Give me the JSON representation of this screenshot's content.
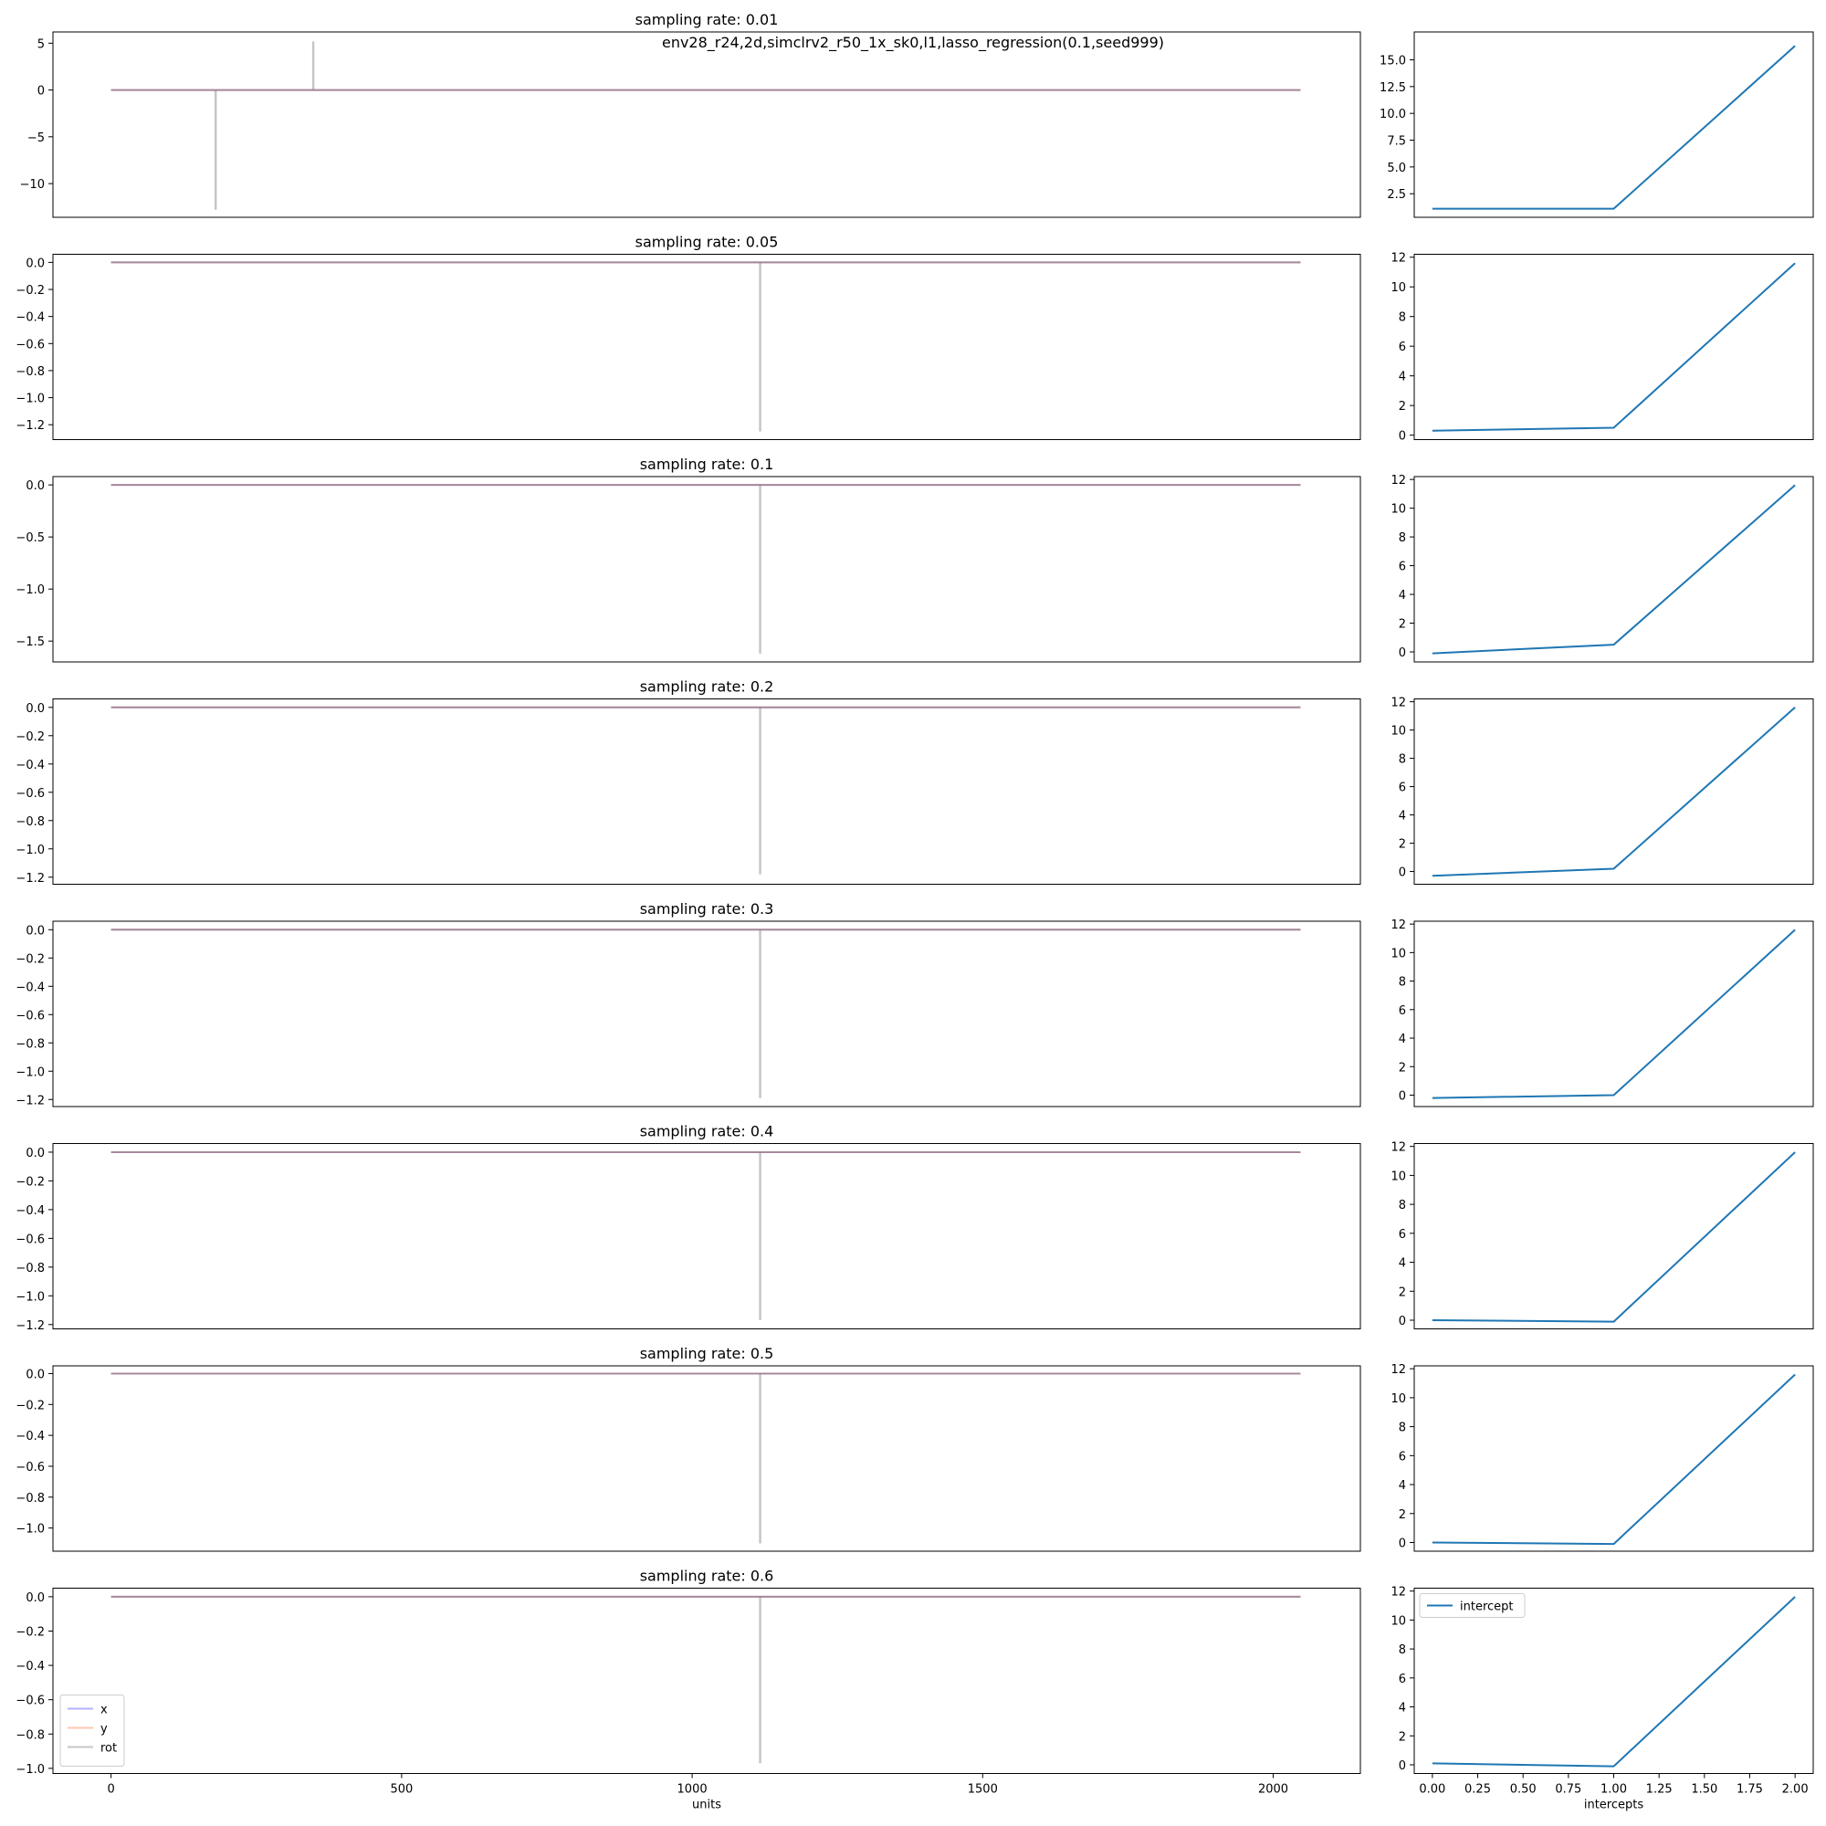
{
  "figure": {
    "suptitle": "env28_r24,2d,simclrv2_r50_1x_sk0,l1,lasso_regression(0.1,seed999)"
  },
  "colors": {
    "x": "#0000ff",
    "y": "#ff4500",
    "rot": "#808080",
    "intercept": "#1f77b4"
  },
  "chart_data": [
    {
      "type": "line",
      "panel": "coefficients",
      "title": "sampling rate: 0.01",
      "xlabel": "",
      "ylabel": "",
      "xlim": [
        -100,
        2150
      ],
      "ylim": [
        -13.6,
        6.2
      ],
      "xticks": [
        0,
        500,
        1000,
        1500,
        2000
      ],
      "show_xticks": false,
      "yticks": [
        5,
        0,
        -5,
        -10
      ],
      "ytick_labels": [
        "5",
        "0",
        "−5",
        "−10"
      ],
      "baseline_x": [
        0,
        2047
      ],
      "value": 0,
      "spikes": [
        {
          "x": 180,
          "y": -12.8
        },
        {
          "x": 348,
          "y": 5.2
        }
      ],
      "series": [
        {
          "name": "x"
        },
        {
          "name": "y"
        },
        {
          "name": "rot"
        }
      ]
    },
    {
      "type": "line",
      "panel": "coefficients",
      "title": "sampling rate: 0.05",
      "xlabel": "",
      "ylabel": "",
      "xlim": [
        -100,
        2150
      ],
      "ylim": [
        -1.31,
        0.06
      ],
      "xticks": [
        0,
        500,
        1000,
        1500,
        2000
      ],
      "show_xticks": false,
      "yticks": [
        0,
        -0.2,
        -0.4,
        -0.6,
        -0.8,
        -1.0,
        -1.2
      ],
      "ytick_labels": [
        "0.0",
        "−0.2",
        "−0.4",
        "−0.6",
        "−0.8",
        "−1.0",
        "−1.2"
      ],
      "baseline_x": [
        0,
        2047
      ],
      "value": 0,
      "spikes": [
        {
          "x": 1117,
          "y": -1.25
        }
      ],
      "series": [
        {
          "name": "x"
        },
        {
          "name": "y"
        },
        {
          "name": "rot"
        }
      ]
    },
    {
      "type": "line",
      "panel": "coefficients",
      "title": "sampling rate: 0.1",
      "xlabel": "",
      "ylabel": "",
      "xlim": [
        -100,
        2150
      ],
      "ylim": [
        -1.7,
        0.08
      ],
      "xticks": [
        0,
        500,
        1000,
        1500,
        2000
      ],
      "show_xticks": false,
      "yticks": [
        0,
        -0.5,
        -1.0,
        -1.5
      ],
      "ytick_labels": [
        "0.0",
        "−0.5",
        "−1.0",
        "−1.5"
      ],
      "baseline_x": [
        0,
        2047
      ],
      "value": 0,
      "spikes": [
        {
          "x": 1117,
          "y": -1.62
        }
      ],
      "series": [
        {
          "name": "x"
        },
        {
          "name": "y"
        },
        {
          "name": "rot"
        }
      ]
    },
    {
      "type": "line",
      "panel": "coefficients",
      "title": "sampling rate: 0.2",
      "xlabel": "",
      "ylabel": "",
      "xlim": [
        -100,
        2150
      ],
      "ylim": [
        -1.25,
        0.06
      ],
      "xticks": [
        0,
        500,
        1000,
        1500,
        2000
      ],
      "show_xticks": false,
      "yticks": [
        0,
        -0.2,
        -0.4,
        -0.6,
        -0.8,
        -1.0,
        -1.2
      ],
      "ytick_labels": [
        "0.0",
        "−0.2",
        "−0.4",
        "−0.6",
        "−0.8",
        "−1.0",
        "−1.2"
      ],
      "baseline_x": [
        0,
        2047
      ],
      "value": 0,
      "spikes": [
        {
          "x": 1117,
          "y": -1.18
        }
      ],
      "series": [
        {
          "name": "x"
        },
        {
          "name": "y"
        },
        {
          "name": "rot"
        }
      ]
    },
    {
      "type": "line",
      "panel": "coefficients",
      "title": "sampling rate: 0.3",
      "xlabel": "",
      "ylabel": "",
      "xlim": [
        -100,
        2150
      ],
      "ylim": [
        -1.25,
        0.06
      ],
      "xticks": [
        0,
        500,
        1000,
        1500,
        2000
      ],
      "show_xticks": false,
      "yticks": [
        0,
        -0.2,
        -0.4,
        -0.6,
        -0.8,
        -1.0,
        -1.2
      ],
      "ytick_labels": [
        "0.0",
        "−0.2",
        "−0.4",
        "−0.6",
        "−0.8",
        "−1.0",
        "−1.2"
      ],
      "baseline_x": [
        0,
        2047
      ],
      "value": 0,
      "spikes": [
        {
          "x": 1117,
          "y": -1.19
        }
      ],
      "series": [
        {
          "name": "x"
        },
        {
          "name": "y"
        },
        {
          "name": "rot"
        }
      ]
    },
    {
      "type": "line",
      "panel": "coefficients",
      "title": "sampling rate: 0.4",
      "xlabel": "",
      "ylabel": "",
      "xlim": [
        -100,
        2150
      ],
      "ylim": [
        -1.23,
        0.06
      ],
      "xticks": [
        0,
        500,
        1000,
        1500,
        2000
      ],
      "show_xticks": false,
      "yticks": [
        0,
        -0.2,
        -0.4,
        -0.6,
        -0.8,
        -1.0,
        -1.2
      ],
      "ytick_labels": [
        "0.0",
        "−0.2",
        "−0.4",
        "−0.6",
        "−0.8",
        "−1.0",
        "−1.2"
      ],
      "baseline_x": [
        0,
        2047
      ],
      "value": 0,
      "spikes": [
        {
          "x": 1117,
          "y": -1.17
        }
      ],
      "series": [
        {
          "name": "x"
        },
        {
          "name": "y"
        },
        {
          "name": "rot"
        }
      ]
    },
    {
      "type": "line",
      "panel": "coefficients",
      "title": "sampling rate: 0.5",
      "xlabel": "",
      "ylabel": "",
      "xlim": [
        -100,
        2150
      ],
      "ylim": [
        -1.15,
        0.05
      ],
      "xticks": [
        0,
        500,
        1000,
        1500,
        2000
      ],
      "show_xticks": false,
      "yticks": [
        0,
        -0.2,
        -0.4,
        -0.6,
        -0.8,
        -1.0
      ],
      "ytick_labels": [
        "0.0",
        "−0.2",
        "−0.4",
        "−0.6",
        "−0.8",
        "−1.0"
      ],
      "baseline_x": [
        0,
        2047
      ],
      "value": 0,
      "spikes": [
        {
          "x": 1117,
          "y": -1.1
        }
      ],
      "series": [
        {
          "name": "x"
        },
        {
          "name": "y"
        },
        {
          "name": "rot"
        }
      ]
    },
    {
      "type": "line",
      "panel": "coefficients",
      "title": "sampling rate: 0.6",
      "xlabel": "units",
      "ylabel": "",
      "xlim": [
        -100,
        2150
      ],
      "ylim": [
        -1.03,
        0.05
      ],
      "xticks": [
        0,
        500,
        1000,
        1500,
        2000
      ],
      "show_xticks": true,
      "yticks": [
        0,
        -0.2,
        -0.4,
        -0.6,
        -0.8,
        -1.0
      ],
      "ytick_labels": [
        "0.0",
        "−0.2",
        "−0.4",
        "−0.6",
        "−0.8",
        "−1.0"
      ],
      "baseline_x": [
        0,
        2047
      ],
      "value": 0,
      "spikes": [
        {
          "x": 1117,
          "y": -0.97
        }
      ],
      "series": [
        {
          "name": "x"
        },
        {
          "name": "y"
        },
        {
          "name": "rot"
        }
      ],
      "legend": {
        "placement": "lower-left",
        "entries": [
          "x",
          "y",
          "rot"
        ]
      }
    },
    {
      "type": "line",
      "panel": "intercepts",
      "title": "",
      "xlabel": "",
      "ylabel": "",
      "x": [
        0,
        1,
        2
      ],
      "xlim": [
        -0.1,
        2.1
      ],
      "ylim": [
        0.3,
        17.6
      ],
      "xticks": [
        0,
        0.25,
        0.5,
        0.75,
        1.0,
        1.25,
        1.5,
        1.75,
        2.0
      ],
      "show_xticks": false,
      "yticks": [
        2.5,
        5.0,
        7.5,
        10.0,
        12.5,
        15.0
      ],
      "ytick_labels": [
        "2.5",
        "5.0",
        "7.5",
        "10.0",
        "12.5",
        "15.0"
      ],
      "series": [
        {
          "name": "intercept",
          "values": [
            1.1,
            1.1,
            16.3
          ]
        }
      ]
    },
    {
      "type": "line",
      "panel": "intercepts",
      "title": "",
      "xlabel": "",
      "ylabel": "",
      "x": [
        0,
        1,
        2
      ],
      "xlim": [
        -0.1,
        2.1
      ],
      "ylim": [
        -0.3,
        12.2
      ],
      "xticks": [
        0,
        0.25,
        0.5,
        0.75,
        1.0,
        1.25,
        1.5,
        1.75,
        2.0
      ],
      "show_xticks": false,
      "yticks": [
        0,
        2,
        4,
        6,
        8,
        10,
        12
      ],
      "ytick_labels": [
        "0",
        "2",
        "4",
        "6",
        "8",
        "10",
        "12"
      ],
      "series": [
        {
          "name": "intercept",
          "values": [
            0.3,
            0.5,
            11.6
          ]
        }
      ]
    },
    {
      "type": "line",
      "panel": "intercepts",
      "title": "",
      "xlabel": "",
      "ylabel": "",
      "x": [
        0,
        1,
        2
      ],
      "xlim": [
        -0.1,
        2.1
      ],
      "ylim": [
        -0.7,
        12.2
      ],
      "xticks": [
        0,
        0.25,
        0.5,
        0.75,
        1.0,
        1.25,
        1.5,
        1.75,
        2.0
      ],
      "show_xticks": false,
      "yticks": [
        0,
        2,
        4,
        6,
        8,
        10,
        12
      ],
      "ytick_labels": [
        "0",
        "2",
        "4",
        "6",
        "8",
        "10",
        "12"
      ],
      "series": [
        {
          "name": "intercept",
          "values": [
            -0.1,
            0.5,
            11.6
          ]
        }
      ]
    },
    {
      "type": "line",
      "panel": "intercepts",
      "title": "",
      "xlabel": "",
      "ylabel": "",
      "x": [
        0,
        1,
        2
      ],
      "xlim": [
        -0.1,
        2.1
      ],
      "ylim": [
        -0.9,
        12.2
      ],
      "xticks": [
        0,
        0.25,
        0.5,
        0.75,
        1.0,
        1.25,
        1.5,
        1.75,
        2.0
      ],
      "show_xticks": false,
      "yticks": [
        0,
        2,
        4,
        6,
        8,
        10,
        12
      ],
      "ytick_labels": [
        "0",
        "2",
        "4",
        "6",
        "8",
        "10",
        "12"
      ],
      "series": [
        {
          "name": "intercept",
          "values": [
            -0.3,
            0.2,
            11.6
          ]
        }
      ]
    },
    {
      "type": "line",
      "panel": "intercepts",
      "title": "",
      "xlabel": "",
      "ylabel": "",
      "x": [
        0,
        1,
        2
      ],
      "xlim": [
        -0.1,
        2.1
      ],
      "ylim": [
        -0.8,
        12.2
      ],
      "xticks": [
        0,
        0.25,
        0.5,
        0.75,
        1.0,
        1.25,
        1.5,
        1.75,
        2.0
      ],
      "show_xticks": false,
      "yticks": [
        0,
        2,
        4,
        6,
        8,
        10,
        12
      ],
      "ytick_labels": [
        "0",
        "2",
        "4",
        "6",
        "8",
        "10",
        "12"
      ],
      "series": [
        {
          "name": "intercept",
          "values": [
            -0.2,
            0.0,
            11.6
          ]
        }
      ]
    },
    {
      "type": "line",
      "panel": "intercepts",
      "title": "",
      "xlabel": "",
      "ylabel": "",
      "x": [
        0,
        1,
        2
      ],
      "xlim": [
        -0.1,
        2.1
      ],
      "ylim": [
        -0.6,
        12.2
      ],
      "xticks": [
        0,
        0.25,
        0.5,
        0.75,
        1.0,
        1.25,
        1.5,
        1.75,
        2.0
      ],
      "show_xticks": false,
      "yticks": [
        0,
        2,
        4,
        6,
        8,
        10,
        12
      ],
      "ytick_labels": [
        "0",
        "2",
        "4",
        "6",
        "8",
        "10",
        "12"
      ],
      "series": [
        {
          "name": "intercept",
          "values": [
            0.0,
            -0.1,
            11.6
          ]
        }
      ]
    },
    {
      "type": "line",
      "panel": "intercepts",
      "title": "",
      "xlabel": "",
      "ylabel": "",
      "x": [
        0,
        1,
        2
      ],
      "xlim": [
        -0.1,
        2.1
      ],
      "ylim": [
        -0.6,
        12.2
      ],
      "xticks": [
        0,
        0.25,
        0.5,
        0.75,
        1.0,
        1.25,
        1.5,
        1.75,
        2.0
      ],
      "show_xticks": false,
      "yticks": [
        0,
        2,
        4,
        6,
        8,
        10,
        12
      ],
      "ytick_labels": [
        "0",
        "2",
        "4",
        "6",
        "8",
        "10",
        "12"
      ],
      "series": [
        {
          "name": "intercept",
          "values": [
            0.0,
            -0.1,
            11.6
          ]
        }
      ]
    },
    {
      "type": "line",
      "panel": "intercepts",
      "title": "",
      "xlabel": "intercepts",
      "ylabel": "",
      "x": [
        0,
        1,
        2
      ],
      "xlim": [
        -0.1,
        2.1
      ],
      "ylim": [
        -0.6,
        12.2
      ],
      "xticks": [
        0,
        0.25,
        0.5,
        0.75,
        1.0,
        1.25,
        1.5,
        1.75,
        2.0
      ],
      "show_xticks": true,
      "xtick_labels": [
        "0.00",
        "0.25",
        "0.50",
        "0.75",
        "1.00",
        "1.25",
        "1.50",
        "1.75",
        "2.00"
      ],
      "yticks": [
        0,
        2,
        4,
        6,
        8,
        10,
        12
      ],
      "ytick_labels": [
        "0",
        "2",
        "4",
        "6",
        "8",
        "10",
        "12"
      ],
      "series": [
        {
          "name": "intercept",
          "values": [
            0.1,
            -0.1,
            11.6
          ]
        }
      ],
      "legend": {
        "placement": "upper-left",
        "entries": [
          "intercept"
        ]
      }
    }
  ]
}
